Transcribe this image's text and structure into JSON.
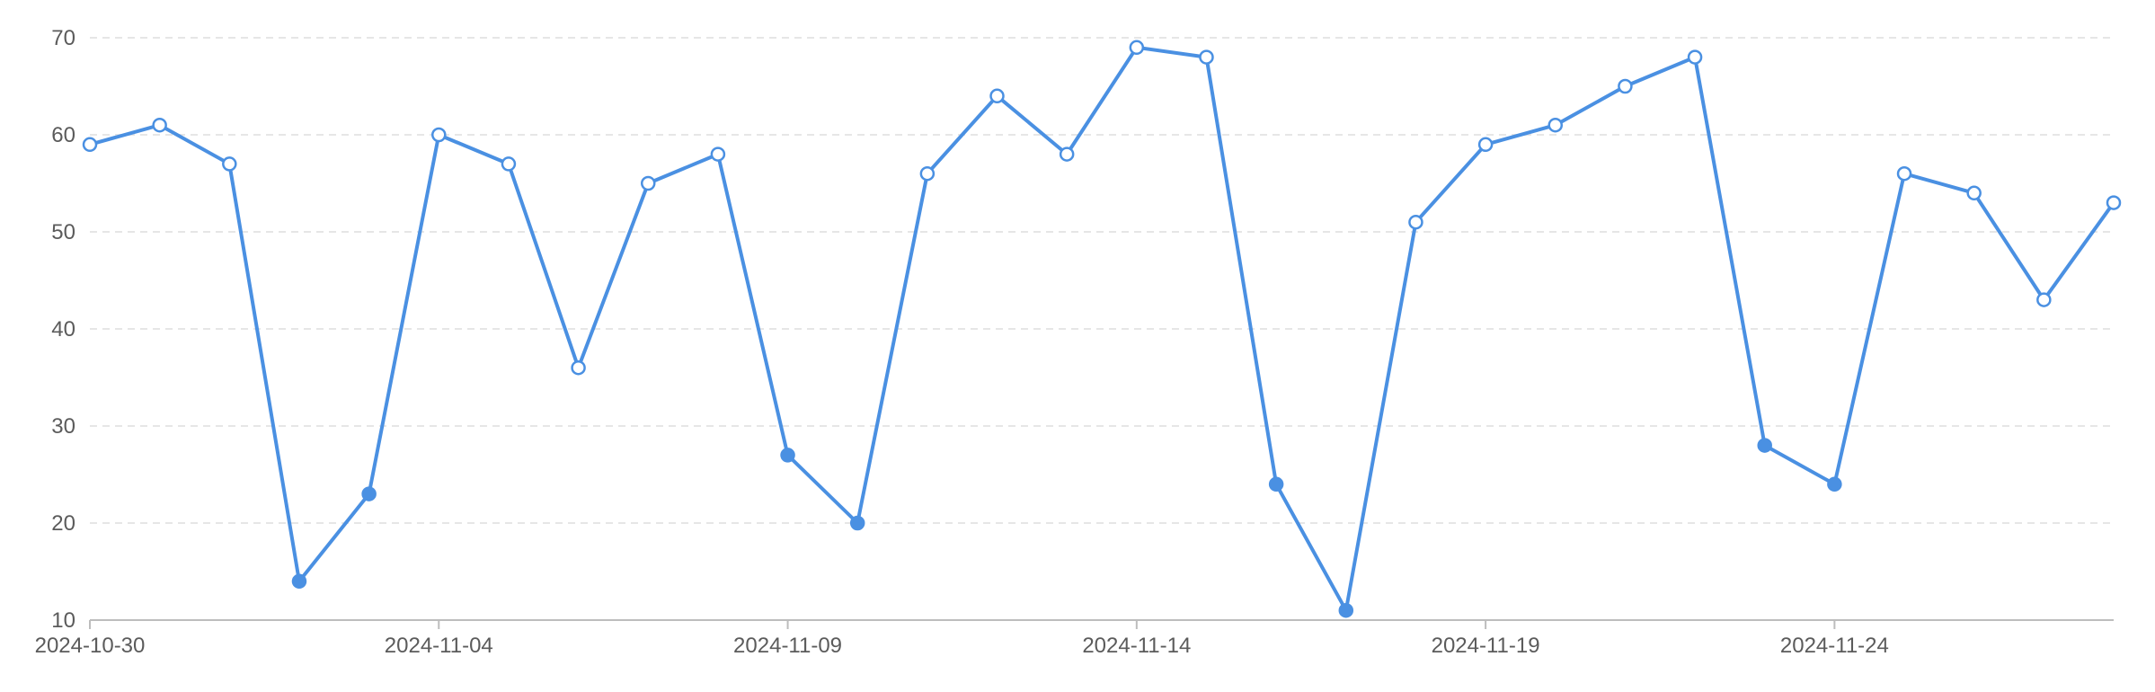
{
  "chart_data": {
    "type": "line",
    "title": "",
    "xlabel": "",
    "ylabel": "",
    "x": [
      "2024-10-30",
      "2024-10-31",
      "2024-11-01",
      "2024-11-02",
      "2024-11-03",
      "2024-11-04",
      "2024-11-05",
      "2024-11-06",
      "2024-11-07",
      "2024-11-08",
      "2024-11-09",
      "2024-11-10",
      "2024-11-11",
      "2024-11-12",
      "2024-11-13",
      "2024-11-14",
      "2024-11-15",
      "2024-11-16",
      "2024-11-17",
      "2024-11-18",
      "2024-11-19",
      "2024-11-20",
      "2024-11-21",
      "2024-11-22",
      "2024-11-23",
      "2024-11-24",
      "2024-11-25",
      "2024-11-26",
      "2024-11-27",
      "2024-11-28"
    ],
    "series": [
      {
        "values": [
          59,
          61,
          57,
          14,
          23,
          60,
          57,
          36,
          55,
          58,
          27,
          20,
          56,
          64,
          58,
          69,
          68,
          24,
          11,
          51,
          59,
          61,
          65,
          68,
          28,
          24,
          56,
          54,
          43,
          53
        ]
      }
    ],
    "ylim": [
      10,
      70
    ],
    "yticks": [
      10,
      20,
      30,
      40,
      50,
      60,
      70
    ],
    "xtick_labels": [
      "2024-10-30",
      "2024-11-04",
      "2024-11-09",
      "2024-11-14",
      "2024-11-19",
      "2024-11-24"
    ],
    "highlight_below": 30,
    "grid": true,
    "legend": "none",
    "colors": {
      "line": "#4a90e2",
      "marker_fill_normal": "#ffffff",
      "marker_fill_low": "#4a90e2",
      "grid": "#e6e6e6",
      "axis": "#bdbdbd",
      "text": "#5b5b5b"
    }
  }
}
